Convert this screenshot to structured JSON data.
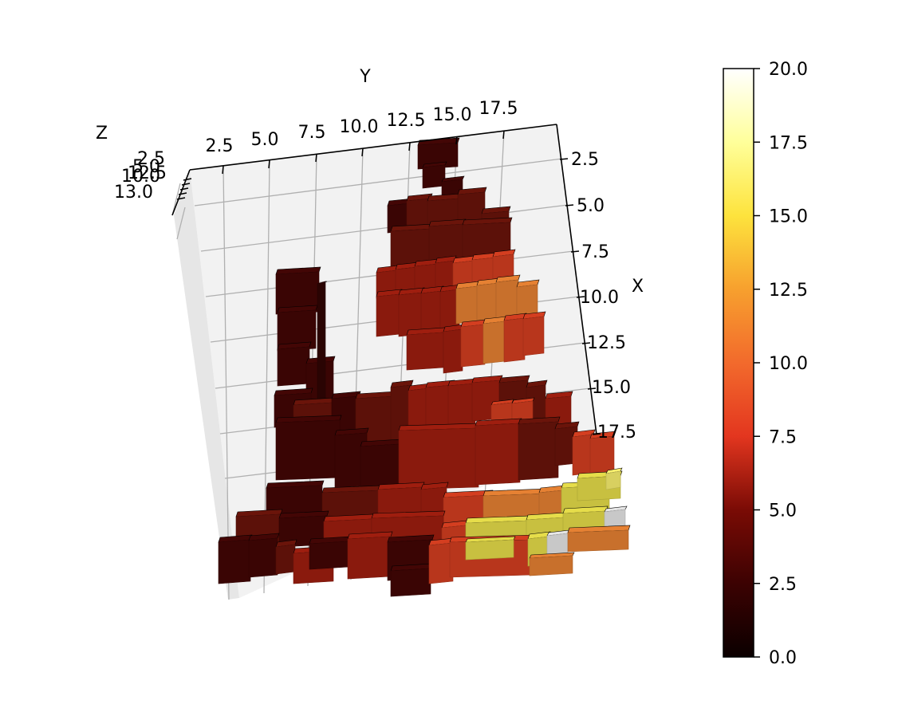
{
  "chart_data": {
    "type": "voxel",
    "view": "3d",
    "xlabel": "X",
    "ylabel": "Y",
    "zlabel": "Z",
    "x_ticks": [
      "2.5",
      "5.0",
      "7.5",
      "10.0",
      "12.5",
      "15.0",
      "17.5"
    ],
    "y_ticks": [
      "2.5",
      "5.0",
      "7.5",
      "10.0",
      "12.5",
      "15.0",
      "17.5"
    ],
    "z_ticks": [
      "2.5",
      "5.0",
      "10.0",
      "12.5",
      "13.0"
    ],
    "grid": true,
    "colormap": "hot",
    "colorbar": {
      "min": 0.0,
      "max": 20.0,
      "ticks": [
        "0.0",
        "2.5",
        "5.0",
        "7.5",
        "10.0",
        "12.5",
        "15.0",
        "17.5",
        "20.0"
      ]
    },
    "colors": {
      "pane": "#f2f2f2",
      "grid": "#b0b0b0",
      "darkest": "#3a0504",
      "dark": "#5c1109",
      "medium": "#8a1a0d",
      "red": "#b8361c",
      "orange": "#c8702c",
      "yellow": "#c8c040",
      "gray": "#c8c8c8"
    }
  }
}
